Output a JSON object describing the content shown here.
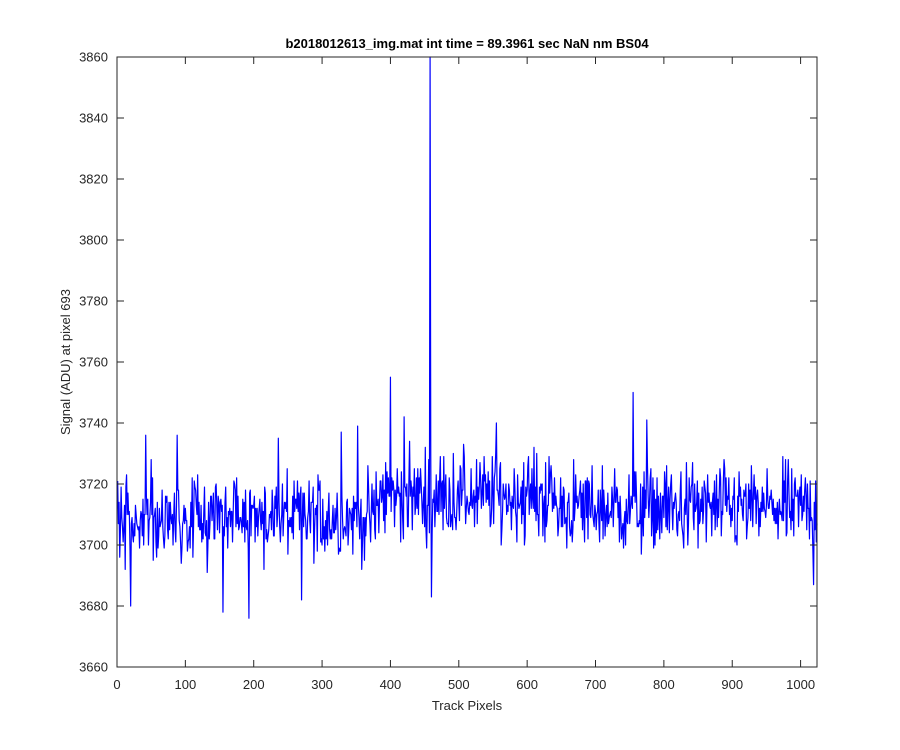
{
  "chart_data": {
    "type": "line",
    "title": "b2018012613_img.mat int time = 89.3961 sec  NaN nm BS04",
    "xlabel": "Track Pixels",
    "ylabel": "Signal (ADU) at pixel 693",
    "xlim": [
      0,
      1024
    ],
    "ylim": [
      3660,
      3860
    ],
    "xticks": [
      0,
      100,
      200,
      300,
      400,
      500,
      600,
      700,
      800,
      900,
      1000
    ],
    "yticks": [
      3660,
      3680,
      3700,
      3720,
      3740,
      3760,
      3780,
      3800,
      3820,
      3840,
      3860
    ],
    "grid": false,
    "legend": "none",
    "line_color": "#0000ff",
    "series": [
      {
        "x_start": 1,
        "x_step": 1,
        "noise": {
          "segments": [
            {
              "x_from": 1,
              "x_to": 380,
              "mean": 3709,
              "spread": 7
            },
            {
              "x_from": 380,
              "x_to": 640,
              "mean": 3716,
              "spread": 7
            },
            {
              "x_from": 640,
              "x_to": 1024,
              "mean": 3712,
              "spread": 7
            }
          ],
          "extremes": [
            {
              "x": 20,
              "y": 3680
            },
            {
              "x": 42,
              "y": 3736
            },
            {
              "x": 88,
              "y": 3736
            },
            {
              "x": 155,
              "y": 3678
            },
            {
              "x": 193,
              "y": 3676
            },
            {
              "x": 236,
              "y": 3735
            },
            {
              "x": 270,
              "y": 3682
            },
            {
              "x": 328,
              "y": 3737
            },
            {
              "x": 352,
              "y": 3739
            },
            {
              "x": 400,
              "y": 3755
            },
            {
              "x": 420,
              "y": 3742
            },
            {
              "x": 458,
              "y": 3860
            },
            {
              "x": 460,
              "y": 3683
            },
            {
              "x": 555,
              "y": 3740
            },
            {
              "x": 755,
              "y": 3750
            },
            {
              "x": 775,
              "y": 3741
            },
            {
              "x": 1019,
              "y": 3687
            }
          ]
        }
      }
    ]
  }
}
